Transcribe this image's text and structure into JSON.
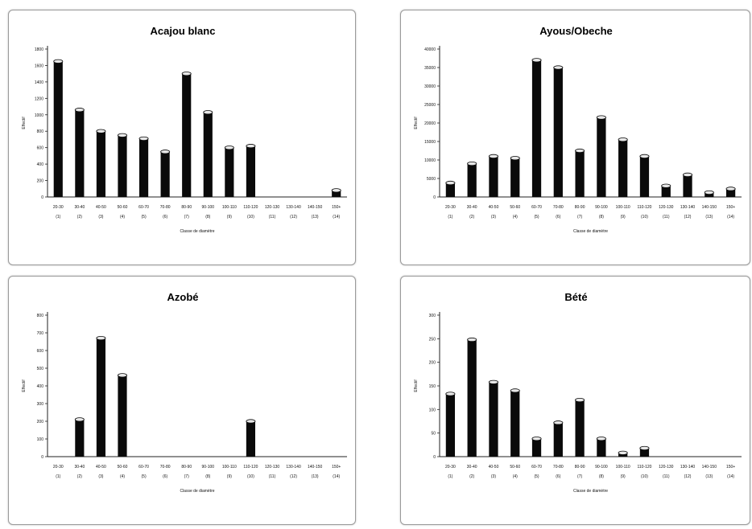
{
  "chart_data": [
    {
      "type": "bar",
      "title": "Acajou blanc",
      "xlabel": "Classe de diamètre",
      "ylabel": "Effectif",
      "ylim": [
        0,
        1800
      ],
      "yticks": [
        0,
        200,
        400,
        600,
        800,
        1000,
        1200,
        1400,
        1600,
        1800
      ],
      "categories": [
        "20-30",
        "30-40",
        "40-50",
        "50-60",
        "60-70",
        "70-80",
        "80-90",
        "90-100",
        "100-110",
        "110-120",
        "120-130",
        "130-140",
        "140-150",
        "150+"
      ],
      "class_labels": [
        "(1)",
        "(2)",
        "(3)",
        "(4)",
        "(5)",
        "(6)",
        "(7)",
        "(8)",
        "(9)",
        "(10)",
        "(11)",
        "(12)",
        "(13)",
        "(14)"
      ],
      "values": [
        1650,
        1060,
        800,
        750,
        710,
        550,
        1500,
        1030,
        600,
        620,
        0,
        0,
        0,
        80
      ]
    },
    {
      "type": "bar",
      "title": "Ayous/Obeche",
      "xlabel": "Classe de diamètre",
      "ylabel": "Effectif",
      "ylim": [
        0,
        40000
      ],
      "yticks": [
        0,
        5000,
        10000,
        15000,
        20000,
        25000,
        30000,
        35000,
        40000
      ],
      "categories": [
        "20-30",
        "30-40",
        "40-50",
        "50-60",
        "60-70",
        "70-80",
        "80-90",
        "90-100",
        "100-110",
        "110-120",
        "120-130",
        "130-140",
        "140-150",
        "150+"
      ],
      "class_labels": [
        "(1)",
        "(2)",
        "(3)",
        "(4)",
        "(5)",
        "(6)",
        "(7)",
        "(8)",
        "(9)",
        "(10)",
        "(11)",
        "(12)",
        "(13)",
        "(14)"
      ],
      "values": [
        3800,
        9000,
        11000,
        10500,
        37000,
        35000,
        12500,
        21500,
        15500,
        11000,
        3000,
        6000,
        1200,
        2200
      ]
    },
    {
      "type": "bar",
      "title": "Azobé",
      "xlabel": "Classe de diamètre",
      "ylabel": "Effectif",
      "ylim": [
        0,
        800
      ],
      "yticks": [
        0,
        100,
        200,
        300,
        400,
        500,
        600,
        700,
        800
      ],
      "categories": [
        "20-30",
        "30-40",
        "40-50",
        "50-60",
        "60-70",
        "70-80",
        "80-90",
        "90-100",
        "100-110",
        "110-120",
        "120-130",
        "130-140",
        "140-150",
        "150+"
      ],
      "class_labels": [
        "(1)",
        "(2)",
        "(3)",
        "(4)",
        "(5)",
        "(6)",
        "(7)",
        "(8)",
        "(9)",
        "(10)",
        "(11)",
        "(12)",
        "(13)",
        "(14)"
      ],
      "values": [
        0,
        210,
        670,
        460,
        0,
        0,
        0,
        0,
        0,
        200,
        0,
        0,
        0,
        0
      ]
    },
    {
      "type": "bar",
      "title": "Bété",
      "xlabel": "Classe de diamètre",
      "ylabel": "Effectif",
      "ylim": [
        0,
        300
      ],
      "yticks": [
        0,
        50,
        100,
        150,
        200,
        250,
        300
      ],
      "categories": [
        "20-30",
        "30-40",
        "40-50",
        "50-60",
        "60-70",
        "70-80",
        "80-90",
        "90-100",
        "100-110",
        "110-120",
        "120-130",
        "130-140",
        "140-150",
        "150+"
      ],
      "class_labels": [
        "(1)",
        "(2)",
        "(3)",
        "(4)",
        "(5)",
        "(6)",
        "(7)",
        "(8)",
        "(9)",
        "(10)",
        "(11)",
        "(12)",
        "(13)",
        "(14)"
      ],
      "values": [
        133,
        248,
        158,
        140,
        38,
        72,
        120,
        38,
        8,
        18,
        0,
        0,
        0,
        0
      ]
    }
  ]
}
